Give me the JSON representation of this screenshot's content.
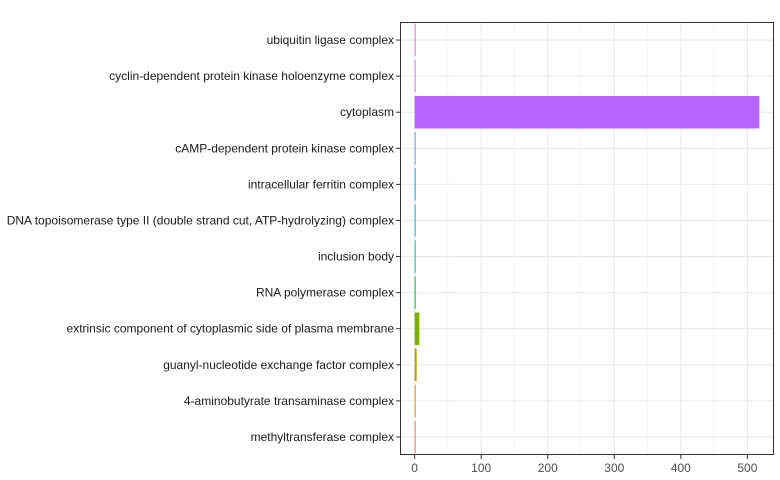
{
  "chart_data": {
    "type": "bar",
    "orientation": "horizontal",
    "categories": [
      "ubiquitin ligase complex",
      "cyclin-dependent protein kinase holoenzyme complex",
      "cytoplasm",
      "cAMP-dependent protein kinase complex",
      "intracellular ferritin complex",
      "DNA topoisomerase type II (double strand cut, ATP-hydrolyzing) complex",
      "inclusion body",
      "RNA polymerase complex",
      "extrinsic component of cytoplasmic side of plasma membrane",
      "guanyl-nucleotide exchange factor complex",
      "4-aminobutyrate transaminase complex",
      "methyltransferase complex"
    ],
    "values": [
      1,
      1,
      518,
      1,
      1,
      1,
      1,
      1,
      7,
      3,
      1,
      1
    ],
    "colors": [
      "#E76BF3",
      "#C77CFF",
      "#B862FF",
      "#619CFF",
      "#00A9FF",
      "#00B8E7",
      "#00C19A",
      "#00BA38",
      "#7CAE00",
      "#B79F00",
      "#DE8C00",
      "#F8766D"
    ],
    "xticks": [
      0,
      100,
      200,
      300,
      400,
      500
    ],
    "xlim": [
      -22,
      540
    ],
    "grid": true,
    "title": "",
    "xlabel": "",
    "ylabel": ""
  }
}
